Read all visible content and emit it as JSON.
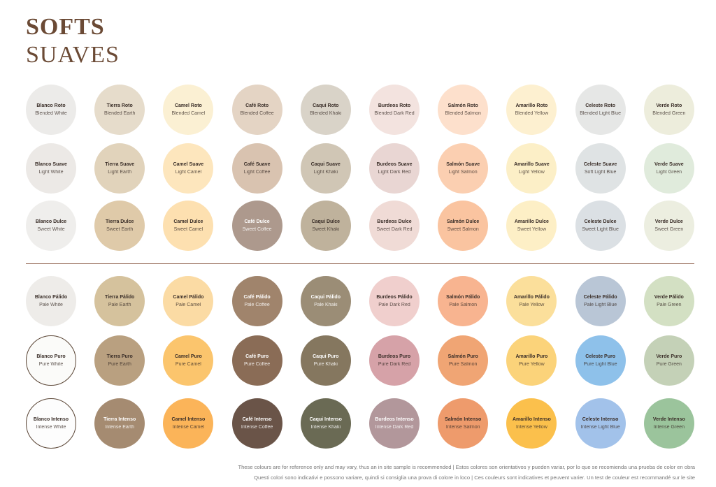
{
  "header": {
    "title": "SOFTS",
    "subtitle": "SUAVES"
  },
  "rows": [
    [
      {
        "name": "Blanco Roto",
        "label": "Blended White",
        "color": "#ecebe9"
      },
      {
        "name": "Tierra Roto",
        "label": "Blended Earth",
        "color": "#e6dccb"
      },
      {
        "name": "Camel Roto",
        "label": "Blended Camel",
        "color": "#fbf0d3"
      },
      {
        "name": "Café Roto",
        "label": "Blended Coffee",
        "color": "#e4d4c4"
      },
      {
        "name": "Caqui Roto",
        "label": "Blended Khaki",
        "color": "#d9d3c8"
      },
      {
        "name": "Burdeos Roto",
        "label": "Blended Dark Red",
        "color": "#f3e3df"
      },
      {
        "name": "Salmón Roto",
        "label": "Blended Salmon",
        "color": "#fde0cc"
      },
      {
        "name": "Amarillo Roto",
        "label": "Blended Yellow",
        "color": "#fdf0d0"
      },
      {
        "name": "Celeste Roto",
        "label": "Blended Light Blue",
        "color": "#e6e7e6"
      },
      {
        "name": "Verde Roto",
        "label": "Blended Green",
        "color": "#ededdc"
      }
    ],
    [
      {
        "name": "Blanco Suave",
        "label": "Light White",
        "color": "#ece9e6"
      },
      {
        "name": "Tierra Suave",
        "label": "Light Earth",
        "color": "#e1d3bb"
      },
      {
        "name": "Camel Suave",
        "label": "Light Camel",
        "color": "#fde6bd"
      },
      {
        "name": "Café Suave",
        "label": "Light Coffee",
        "color": "#d9c3b0"
      },
      {
        "name": "Caqui Suave",
        "label": "Light Khaki",
        "color": "#d0c6b5"
      },
      {
        "name": "Burdeos Suave",
        "label": "Light Dark Red",
        "color": "#e9d6d3"
      },
      {
        "name": "Salmón Suave",
        "label": "Light Salmon",
        "color": "#fbcfb1"
      },
      {
        "name": "Amarillo Suave",
        "label": "Light Yellow",
        "color": "#fcefc7"
      },
      {
        "name": "Celeste Suave",
        "label": "Soft Light Blue",
        "color": "#dfe3e4"
      },
      {
        "name": "Verde Suave",
        "label": "Light Green",
        "color": "#e0ebdc"
      }
    ],
    [
      {
        "name": "Blanco Dulce",
        "label": "Sweet White",
        "color": "#efeeec"
      },
      {
        "name": "Tierra Dulce",
        "label": "Sweet Earth",
        "color": "#dfcaa9"
      },
      {
        "name": "Camel Dulce",
        "label": "Sweet Camel",
        "color": "#fde0b0"
      },
      {
        "name": "Café Dulce",
        "label": "Sweet Coffee",
        "color": "#ad998d"
      },
      {
        "name": "Caqui Dulce",
        "label": "Sweet Khaki",
        "color": "#bfb29c"
      },
      {
        "name": "Burdeos Dulce",
        "label": "Sweet Dark Red",
        "color": "#f0dbd6"
      },
      {
        "name": "Salmón Dulce",
        "label": "Sweet Salmon",
        "color": "#fac4a0"
      },
      {
        "name": "Amarillo Dulce",
        "label": "Sweet Yellow",
        "color": "#fdefc6"
      },
      {
        "name": "Celeste Dulce",
        "label": "Sweet Light Blue",
        "color": "#dbe0e4"
      },
      {
        "name": "Verde Dulce",
        "label": "Sweet Green",
        "color": "#eceee0"
      }
    ],
    [
      {
        "name": "Blanco Pálido",
        "label": "Pale White",
        "color": "#eeece9"
      },
      {
        "name": "Tierra Pálido",
        "label": "Pale Earth",
        "color": "#d5c29d"
      },
      {
        "name": "Camel Pálido",
        "label": "Pale Camel",
        "color": "#fbdba4"
      },
      {
        "name": "Café Pálido",
        "label": "Pale Coffee",
        "color": "#a0846c"
      },
      {
        "name": "Caqui Pálido",
        "label": "Pale Khaki",
        "color": "#9b8d76"
      },
      {
        "name": "Burdeos Pálido",
        "label": "Pale Dark Red",
        "color": "#f0cfcd"
      },
      {
        "name": "Salmón Pálido",
        "label": "Pale Salmon",
        "color": "#f8b490"
      },
      {
        "name": "Amarillo Pálido",
        "label": "Pale Yellow",
        "color": "#fbdf9b"
      },
      {
        "name": "Celeste Pálido",
        "label": "Pale Light Blue",
        "color": "#b9c6d6"
      },
      {
        "name": "Verde Pálido",
        "label": "Pale Green",
        "color": "#d3e0c3"
      }
    ],
    [
      {
        "name": "Blanco Puro",
        "label": "Pure White",
        "color": "#fbfbf9",
        "outline": true
      },
      {
        "name": "Tierra Puro",
        "label": "Pure Earth",
        "color": "#b9a080"
      },
      {
        "name": "Camel Puro",
        "label": "Pure Camel",
        "color": "#fbc56d"
      },
      {
        "name": "Café Puro",
        "label": "Pure Coffee",
        "color": "#8a6c56"
      },
      {
        "name": "Caqui Puro",
        "label": "Pure Khaki",
        "color": "#85775f"
      },
      {
        "name": "Burdeos Puro",
        "label": "Pure Dark Red",
        "color": "#d6a2a8"
      },
      {
        "name": "Salmón Puro",
        "label": "Pure Salmon",
        "color": "#f0a574"
      },
      {
        "name": "Amarillo Puro",
        "label": "Pure Yellow",
        "color": "#fbd37a"
      },
      {
        "name": "Celeste Puro",
        "label": "Pure Light Blue",
        "color": "#8ec1ea"
      },
      {
        "name": "Verde Puro",
        "label": "Pure Green",
        "color": "#c4d1b7"
      }
    ],
    [
      {
        "name": "Blanco Intenso",
        "label": "Intense White",
        "color": "#fdfdfd",
        "outline": true
      },
      {
        "name": "Tierra Intenso",
        "label": "Intense Earth",
        "color": "#a58b71"
      },
      {
        "name": "Camel Intenso",
        "label": "Intense Camel",
        "color": "#fbb459"
      },
      {
        "name": "Café Intenso",
        "label": "Intense Coffee",
        "color": "#6a5448"
      },
      {
        "name": "Caqui Intenso",
        "label": "Intense Khaki",
        "color": "#6a6a54"
      },
      {
        "name": "Burdeos Intenso",
        "label": "Intense Dark Red",
        "color": "#b2979b"
      },
      {
        "name": "Salmón Intenso",
        "label": "Intense Salmon",
        "color": "#ee9b6c"
      },
      {
        "name": "Amarillo Intenso",
        "label": "Intense Yellow",
        "color": "#fbc04c"
      },
      {
        "name": "Celeste Intenso",
        "label": "Intense Light Blue",
        "color": "#a2c2ea"
      },
      {
        "name": "Verde Intenso",
        "label": "Intense Green",
        "color": "#9bc49c"
      }
    ]
  ],
  "footer": [
    "These colours are for reference only and may vary, thus an in site sample is recommended | Estos colores son orientativos y pueden variar, por lo que se recomienda una prueba de color en obra",
    "Questi colori sono indicativi e possono variare, quindi si consiglia una prova di colore in loco | Ces couleurs sont indicatives et peuvent varier. Un test de couleur est recommandé sur le site"
  ]
}
